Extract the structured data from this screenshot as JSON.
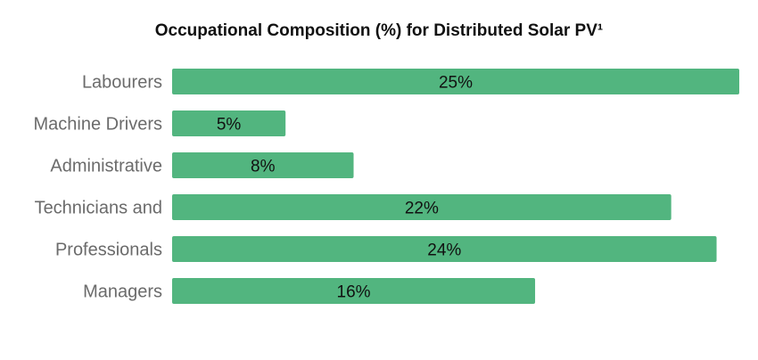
{
  "chart_data": {
    "type": "bar",
    "orientation": "horizontal",
    "title": "Occupational Composition (%) for Distributed Solar PV¹",
    "categories": [
      "Labourers",
      "Machine Drivers",
      "Administrative",
      "Technicians and",
      "Professionals",
      "Managers"
    ],
    "values": [
      25,
      5,
      8,
      22,
      24,
      16
    ],
    "value_labels": [
      "25%",
      "5%",
      "8%",
      "22%",
      "24%",
      "16%"
    ],
    "xlim": [
      0,
      25
    ],
    "grid": false,
    "legend": "none",
    "bar_color": "#52b57f"
  }
}
